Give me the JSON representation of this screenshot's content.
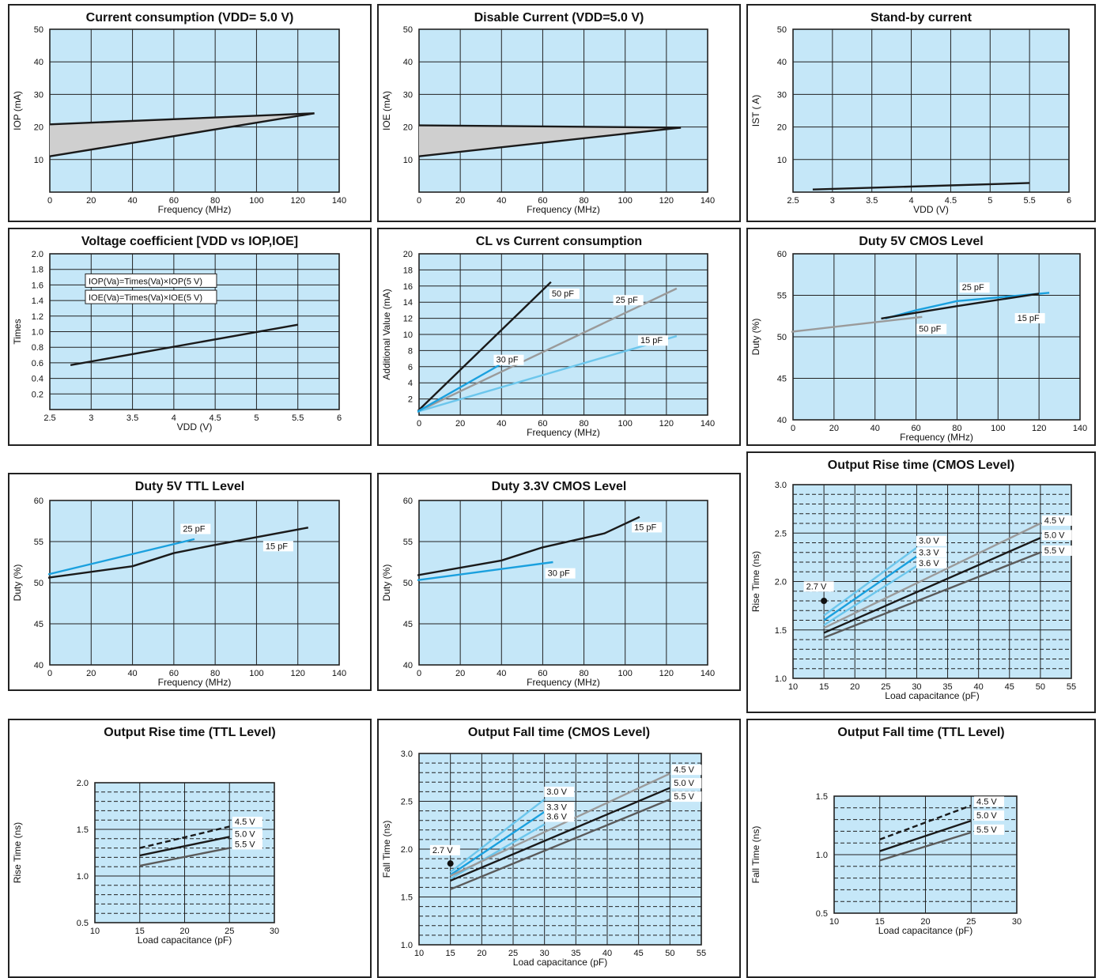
{
  "colors": {
    "plot_bg": "#c5e7f8",
    "grid": "#222222",
    "black": "#1a1a1a",
    "blue": "#1aa0de",
    "light_blue": "#6cc6ec",
    "gray": "#9a9a9a",
    "dark_gray": "#5a5a5a",
    "fill_gray": "#cfcfcf"
  },
  "chart_data": [
    {
      "id": "cc",
      "type": "area",
      "title": "Current consumption (VDD= 5.0 V)",
      "xlabel": "Frequency (MHz)",
      "ylabel": "IOP (mA)",
      "xlim": [
        0,
        140
      ],
      "ylim": [
        0,
        50
      ],
      "xticks": [
        0,
        20,
        40,
        60,
        80,
        100,
        120,
        140
      ],
      "yticks": [
        10,
        20,
        30,
        40,
        50
      ],
      "fill": {
        "upper": [
          [
            0,
            20.8
          ],
          [
            128,
            24.2
          ]
        ],
        "lower": [
          [
            0,
            11
          ],
          [
            128,
            24.2
          ]
        ]
      },
      "series": [
        {
          "color": "black",
          "points": [
            [
              0,
              20.8
            ],
            [
              128,
              24.2
            ]
          ]
        },
        {
          "color": "black",
          "points": [
            [
              0,
              11
            ],
            [
              128,
              24.2
            ]
          ]
        }
      ]
    },
    {
      "id": "dc",
      "type": "area",
      "title": "Disable Current (VDD=5.0 V)",
      "xlabel": "Frequency (MHz)",
      "ylabel": "IOE (mA)",
      "xlim": [
        0,
        140
      ],
      "ylim": [
        0,
        50
      ],
      "xticks": [
        0,
        20,
        40,
        60,
        80,
        100,
        120,
        140
      ],
      "yticks": [
        10,
        20,
        30,
        40,
        50
      ],
      "fill": {
        "upper": [
          [
            0,
            20.5
          ],
          [
            127,
            19.8
          ]
        ],
        "lower": [
          [
            0,
            11
          ],
          [
            127,
            19.8
          ]
        ]
      },
      "series": [
        {
          "color": "black",
          "points": [
            [
              0,
              20.5
            ],
            [
              127,
              19.8
            ]
          ]
        },
        {
          "color": "black",
          "points": [
            [
              0,
              11
            ],
            [
              127,
              19.8
            ]
          ]
        }
      ]
    },
    {
      "id": "sb",
      "type": "line",
      "title": "Stand-by current",
      "xlabel": "VDD (V)",
      "ylabel": "IST ( A)",
      "xlim": [
        2.5,
        6.0
      ],
      "ylim": [
        0,
        50
      ],
      "xticks": [
        2.5,
        3.0,
        3.5,
        4.0,
        4.5,
        5.0,
        5.5,
        6.0
      ],
      "ytickvals": [
        10,
        20,
        30,
        40,
        50
      ],
      "yticks": [
        "10",
        "20",
        "30",
        "40",
        "50"
      ],
      "series": [
        {
          "color": "black",
          "points": [
            [
              2.75,
              0.8
            ],
            [
              5.5,
              2.8
            ]
          ]
        }
      ]
    },
    {
      "id": "vc",
      "type": "line",
      "title": "Voltage coefficient [VDD vs IOP,IOE]",
      "xlabel": "VDD (V)",
      "ylabel": "Times",
      "xlim": [
        2.5,
        6.0
      ],
      "ylim": [
        0,
        2.0
      ],
      "xticks": [
        2.5,
        3.0,
        3.5,
        4.0,
        4.5,
        5.0,
        5.5,
        6.0
      ],
      "ytickvals": [
        0.2,
        0.4,
        0.6,
        0.8,
        1.0,
        1.2,
        1.4,
        1.6,
        1.8,
        2.0
      ],
      "yticks": [
        "0.2",
        "0.4",
        "0.6",
        "0.8",
        "1.0",
        "1.2",
        "1.4",
        "1.6",
        "1.8",
        "2.0"
      ],
      "annotations": [
        {
          "text": "IOP(Va)=Times(Va)×IOP(5 V)",
          "x": 2.93,
          "y": 1.62
        },
        {
          "text": "IOE(Va)=Times(Va)×IOE(5 V)",
          "x": 2.93,
          "y": 1.41
        }
      ],
      "series": [
        {
          "color": "black",
          "points": [
            [
              2.75,
              0.57
            ],
            [
              5.5,
              1.09
            ]
          ]
        }
      ]
    },
    {
      "id": "cl",
      "type": "line",
      "title": "CL vs Current consumption",
      "xlabel": "Frequency (MHz)",
      "ylabel": "Additional Value  (mA)",
      "xlim": [
        0,
        140
      ],
      "ylim": [
        0,
        20
      ],
      "xticks": [
        0,
        20,
        40,
        60,
        80,
        100,
        120,
        140
      ],
      "yticks": [
        2,
        4,
        6,
        8,
        10,
        12,
        14,
        16,
        18,
        20
      ],
      "series": [
        {
          "name": "50 pF",
          "color": "black",
          "points": [
            [
              -1,
              0.4
            ],
            [
              64,
              16.5
            ]
          ],
          "label_at": [
            64,
            14.7
          ]
        },
        {
          "name": "25 pF",
          "color": "gray",
          "points": [
            [
              -1,
              0.4
            ],
            [
              125,
              15.7
            ]
          ],
          "label_at": [
            95,
            13.9
          ]
        },
        {
          "name": "15 pF",
          "color": "light_blue",
          "points": [
            [
              -1,
              0.4
            ],
            [
              125,
              9.8
            ]
          ],
          "label_at": [
            107,
            8.9
          ]
        },
        {
          "name": "30 pF",
          "color": "blue",
          "points": [
            [
              -1,
              0.4
            ],
            [
              39,
              6.2
            ]
          ],
          "label_at": [
            37,
            6.5
          ]
        }
      ]
    },
    {
      "id": "d5c",
      "type": "line",
      "title": "Duty 5V CMOS Level",
      "xlabel": "Frequency (MHz)",
      "ylabel": "Duty (%)",
      "xlim": [
        0,
        140
      ],
      "ylim": [
        40,
        60
      ],
      "xticks": [
        0,
        20,
        40,
        60,
        80,
        100,
        120,
        140
      ],
      "yticks": [
        40,
        45,
        50,
        55,
        60
      ],
      "series": [
        {
          "name": "25 pF",
          "color": "blue",
          "points": [
            [
              45,
              52.2
            ],
            [
              60,
              53.2
            ],
            [
              80,
              54.3
            ],
            [
              125,
              55.3
            ]
          ],
          "label_at": [
            82,
            55.6
          ]
        },
        {
          "name": "15 pF",
          "color": "black",
          "points": [
            [
              43,
              52.2
            ],
            [
              60,
              52.9
            ],
            [
              80,
              53.7
            ],
            [
              120,
              55.2
            ]
          ],
          "label_at": [
            109,
            51.9
          ]
        },
        {
          "name": "50 pF",
          "color": "gray",
          "points": [
            [
              -1,
              50.6
            ],
            [
              63,
              52.4
            ]
          ],
          "label_at": [
            61,
            50.6
          ]
        }
      ]
    },
    {
      "id": "d5t",
      "type": "line",
      "title": "Duty 5V TTL Level",
      "xlabel": "Frequency (MHz)",
      "ylabel": "Duty (%)",
      "xlim": [
        0,
        140
      ],
      "ylim": [
        40,
        60
      ],
      "xticks": [
        0,
        20,
        40,
        60,
        80,
        100,
        120,
        140
      ],
      "yticks": [
        40,
        45,
        50,
        55,
        60
      ],
      "series": [
        {
          "name": "25 pF",
          "color": "blue",
          "points": [
            [
              -1,
              51
            ],
            [
              70,
              55.3
            ]
          ],
          "label_at": [
            64,
            56.2
          ]
        },
        {
          "name": "15 pF",
          "color": "black",
          "points": [
            [
              -1,
              50.6
            ],
            [
              40,
              52
            ],
            [
              60,
              53.6
            ],
            [
              80,
              54.6
            ],
            [
              125,
              56.7
            ]
          ],
          "label_at": [
            104,
            54.1
          ]
        }
      ]
    },
    {
      "id": "d33c",
      "type": "line",
      "title": "Duty 3.3V CMOS Level",
      "xlabel": "Frequency (MHz)",
      "ylabel": "Duty (%)",
      "xlim": [
        0,
        140
      ],
      "ylim": [
        40,
        60
      ],
      "xticks": [
        0,
        20,
        40,
        60,
        80,
        100,
        120,
        140
      ],
      "yticks": [
        40,
        45,
        50,
        55,
        60
      ],
      "series": [
        {
          "name": "15 pF",
          "color": "black",
          "points": [
            [
              -1,
              50.9
            ],
            [
              40,
              52.7
            ],
            [
              60,
              54.3
            ],
            [
              90,
              56
            ],
            [
              107,
              58
            ]
          ],
          "label_at": [
            104,
            56.4
          ]
        },
        {
          "name": "30 pF",
          "color": "blue",
          "points": [
            [
              -1,
              50.3
            ],
            [
              65,
              52.5
            ]
          ],
          "label_at": [
            62,
            50.8
          ]
        }
      ]
    },
    {
      "id": "orc",
      "type": "line",
      "dashed_grid": true,
      "title": "Output Rise time (CMOS Level)",
      "xlabel": "Load capacitance (pF)",
      "ylabel": "Rise Time (ns)",
      "xlim": [
        10,
        55
      ],
      "ylim": [
        1.0,
        3.0
      ],
      "xticks": [
        10,
        15,
        20,
        25,
        30,
        35,
        40,
        45,
        50,
        55
      ],
      "ytickvals": [
        1.0,
        1.5,
        2.0,
        2.5,
        3.0
      ],
      "yticks": [
        "1.0",
        "1.5",
        "2.0",
        "2.5",
        "3.0"
      ],
      "series": [
        {
          "name": "3.0 V",
          "color": "light_blue",
          "points": [
            [
              15,
              1.65
            ],
            [
              30,
              2.35
            ]
          ],
          "label_at": [
            30.2,
            2.39
          ]
        },
        {
          "name": "3.3 V",
          "color": "blue",
          "points": [
            [
              15,
              1.6
            ],
            [
              30,
              2.26
            ]
          ],
          "label_at": [
            30.2,
            2.27
          ]
        },
        {
          "name": "3.6 V",
          "color": "light_blue",
          "points": [
            [
              15,
              1.55
            ],
            [
              30,
              2.16
            ]
          ],
          "label_at": [
            30.2,
            2.16
          ]
        },
        {
          "name": "4.5 V",
          "color": "gray",
          "points": [
            [
              15,
              1.52
            ],
            [
              50,
              2.6
            ]
          ],
          "label_at": [
            50.5,
            2.6
          ]
        },
        {
          "name": "5.0 V",
          "color": "black",
          "points": [
            [
              15,
              1.47
            ],
            [
              50,
              2.45
            ]
          ],
          "label_at": [
            50.5,
            2.45
          ]
        },
        {
          "name": "5.5 V",
          "color": "dark_gray",
          "points": [
            [
              15,
              1.42
            ],
            [
              50,
              2.3
            ]
          ],
          "label_at": [
            50.5,
            2.29
          ]
        }
      ],
      "markers": [
        {
          "name": "2.7 V",
          "point": [
            15,
            1.8
          ],
          "label_at": [
            12,
            1.92
          ]
        }
      ]
    },
    {
      "id": "ort",
      "type": "line",
      "dashed_grid": true,
      "title": "Output Rise time (TTL Level)",
      "xlabel": "Load capacitance (pF)",
      "ylabel": "Rise Time (ns)",
      "xlim": [
        10,
        30
      ],
      "ylim": [
        0.5,
        2.0
      ],
      "xticks": [
        10,
        15,
        20,
        25,
        30
      ],
      "ytickvals": [
        0.5,
        1.0,
        1.5,
        2.0
      ],
      "yticks": [
        "0.5",
        "1.0",
        "1.5",
        "2.0"
      ],
      "series": [
        {
          "name": "4.5 V",
          "color": "black",
          "dashed": true,
          "points": [
            [
              15,
              1.3
            ],
            [
              25,
              1.53
            ]
          ],
          "label_at": [
            25.5,
            1.55
          ]
        },
        {
          "name": "5.0 V",
          "color": "black",
          "points": [
            [
              15,
              1.22
            ],
            [
              25,
              1.42
            ]
          ],
          "label_at": [
            25.5,
            1.42
          ]
        },
        {
          "name": "5.5 V",
          "color": "dark_gray",
          "points": [
            [
              15,
              1.11
            ],
            [
              25,
              1.3
            ]
          ],
          "label_at": [
            25.5,
            1.31
          ]
        }
      ]
    },
    {
      "id": "ofc",
      "type": "line",
      "dashed_grid": true,
      "title": "Output Fall time (CMOS Level)",
      "xlabel": "Load capacitance (pF)",
      "ylabel": "Fall Time (ns)",
      "xlim": [
        10,
        55
      ],
      "ylim": [
        1.0,
        3.0
      ],
      "xticks": [
        10,
        15,
        20,
        25,
        30,
        35,
        40,
        45,
        50,
        55
      ],
      "ytickvals": [
        1.0,
        1.5,
        2.0,
        2.5,
        3.0
      ],
      "yticks": [
        "1.0",
        "1.5",
        "2.0",
        "2.5",
        "3.0"
      ],
      "series": [
        {
          "name": "3.0 V",
          "color": "light_blue",
          "points": [
            [
              15,
              1.76
            ],
            [
              30,
              2.52
            ]
          ],
          "label_at": [
            30.2,
            2.57
          ]
        },
        {
          "name": "3.3 V",
          "color": "blue",
          "points": [
            [
              15,
              1.73
            ],
            [
              30,
              2.39
            ]
          ],
          "label_at": [
            30.2,
            2.41
          ]
        },
        {
          "name": "3.6 V",
          "color": "light_blue",
          "points": [
            [
              15,
              1.69
            ],
            [
              30,
              2.26
            ]
          ],
          "label_at": [
            30.2,
            2.31
          ]
        },
        {
          "name": "4.5 V",
          "color": "gray",
          "points": [
            [
              15,
              1.72
            ],
            [
              50,
              2.79
            ]
          ],
          "label_at": [
            50.5,
            2.8
          ]
        },
        {
          "name": "5.0 V",
          "color": "black",
          "points": [
            [
              15,
              1.67
            ],
            [
              50,
              2.64
            ]
          ],
          "label_at": [
            50.5,
            2.66
          ]
        },
        {
          "name": "5.5 V",
          "color": "dark_gray",
          "points": [
            [
              15,
              1.58
            ],
            [
              50,
              2.52
            ]
          ],
          "label_at": [
            50.5,
            2.52
          ]
        }
      ],
      "markers": [
        {
          "name": "2.7 V",
          "point": [
            15,
            1.85
          ],
          "label_at": [
            12,
            1.96
          ]
        }
      ]
    },
    {
      "id": "oft",
      "type": "line",
      "dashed_grid": true,
      "title": "Output Fall time (TTL Level)",
      "xlabel": "Load capacitance (pF)",
      "ylabel": "Fall Time (ns)",
      "xlim": [
        10,
        30
      ],
      "ylim": [
        0.5,
        1.5
      ],
      "xticks": [
        10,
        15,
        20,
        25,
        30
      ],
      "ytickvals": [
        0.5,
        1.0,
        1.5
      ],
      "yticks": [
        "0.5",
        "1.0",
        "1.5"
      ],
      "series": [
        {
          "name": "4.5 V",
          "color": "black",
          "dashed": true,
          "points": [
            [
              15,
              1.13
            ],
            [
              25,
              1.42
            ]
          ],
          "label_at": [
            25.5,
            1.43
          ]
        },
        {
          "name": "5.0 V",
          "color": "black",
          "points": [
            [
              15,
              1.03
            ],
            [
              25,
              1.29
            ]
          ],
          "label_at": [
            25.5,
            1.31
          ]
        },
        {
          "name": "5.5 V",
          "color": "dark_gray",
          "points": [
            [
              15,
              0.95
            ],
            [
              25,
              1.19
            ]
          ],
          "label_at": [
            25.5,
            1.19
          ]
        }
      ]
    }
  ]
}
